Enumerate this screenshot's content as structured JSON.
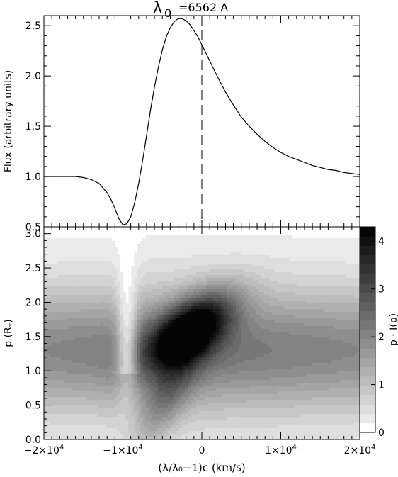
{
  "chart_data": [
    {
      "type": "line",
      "title_symbol": "λ",
      "title_subscript": "0",
      "title_value": "=6562 A",
      "ylabel": "Flux (arbitrary units)",
      "xlim": [
        -20000,
        20000
      ],
      "ylim": [
        0.5,
        2.6
      ],
      "yticks": [
        "0.5",
        "1.0",
        "1.5",
        "2.0",
        "2.5"
      ],
      "vline_x": 0,
      "series": [
        {
          "x": [
            -20000,
            -18000,
            -16000,
            -15000,
            -14000,
            -13000,
            -12000,
            -11500,
            -11000,
            -10500,
            -10000,
            -9500,
            -9000,
            -8500,
            -8000,
            -7500,
            -7000,
            -6500,
            -6000,
            -5500,
            -5000,
            -4500,
            -4000,
            -3500,
            -3000,
            -2500,
            -2000,
            -1500,
            -1000,
            -500,
            0,
            500,
            1000,
            2000,
            3000,
            4000,
            5000,
            6000,
            7000,
            8000,
            9000,
            10000,
            11000,
            12000,
            13000,
            14000,
            15000,
            16000,
            17000,
            18000,
            19000,
            20000
          ],
          "y": [
            1.0,
            1.0,
            1.0,
            0.99,
            0.97,
            0.93,
            0.84,
            0.77,
            0.68,
            0.58,
            0.52,
            0.53,
            0.6,
            0.74,
            0.93,
            1.16,
            1.41,
            1.66,
            1.89,
            2.09,
            2.26,
            2.39,
            2.48,
            2.54,
            2.57,
            2.57,
            2.55,
            2.51,
            2.45,
            2.39,
            2.31,
            2.23,
            2.15,
            1.99,
            1.84,
            1.71,
            1.59,
            1.5,
            1.42,
            1.35,
            1.29,
            1.24,
            1.2,
            1.17,
            1.14,
            1.11,
            1.09,
            1.07,
            1.06,
            1.04,
            1.03,
            1.02
          ]
        }
      ]
    },
    {
      "type": "heatmap",
      "ylabel_main": "p (R",
      "ylabel_sub": "*",
      "ylabel_close": ")",
      "xlabel": "(λ/λ₀−1)c (km/s)",
      "xlim": [
        -20000,
        20000
      ],
      "ylim": [
        0,
        3.1
      ],
      "yticks": [
        "0.0",
        "0.5",
        "1.0",
        "1.5",
        "2.0",
        "2.5",
        "3.0"
      ],
      "xticks": [
        {
          "value": -20000,
          "mant": "−2×10",
          "exp": "4"
        },
        {
          "value": -10000,
          "mant": "−1×10",
          "exp": "4"
        },
        {
          "value": 0,
          "mant": "0",
          "exp": ""
        },
        {
          "value": 10000,
          "mant": "1×10",
          "exp": "4"
        },
        {
          "value": 20000,
          "mant": "2×10",
          "exp": "4"
        }
      ],
      "colorbar_label": "p · I(p)",
      "colorbar_range": [
        0,
        4.3
      ],
      "colorbar_ticks": [
        "0",
        "1",
        "2",
        "3",
        "4"
      ],
      "levels": 22,
      "notes": "dense peak near x≈-2000 km/s, p≈1.6 with value ≈4.2; broad band 0.2<p<2.4; notch near x≈-9500"
    }
  ]
}
